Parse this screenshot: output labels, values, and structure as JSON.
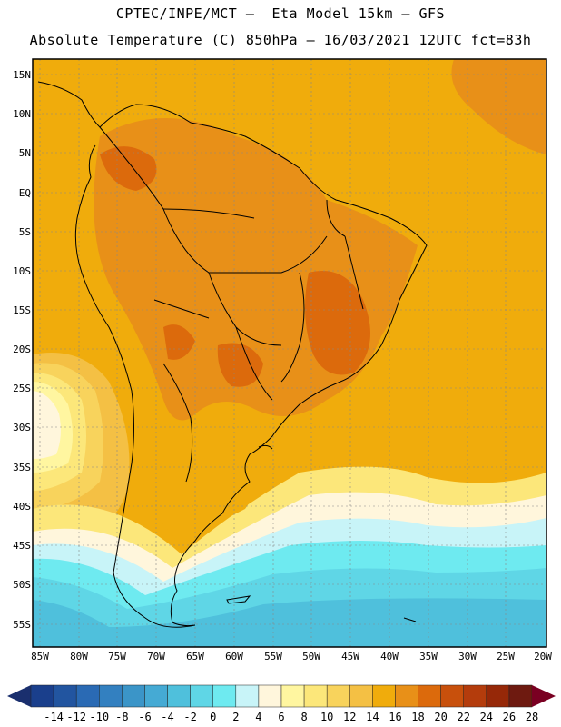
{
  "header": {
    "line1": "CPTEC/INPE/MCT –  Eta Model 15km – GFS",
    "line2": "Absolute Temperature (C) 850hPa – 16/03/2021 12UTC fct=83h"
  },
  "map": {
    "lat_labels": [
      "15N",
      "10N",
      "5N",
      "EQ",
      "5S",
      "10S",
      "15S",
      "20S",
      "25S",
      "30S",
      "35S",
      "40S",
      "45S",
      "50S",
      "55S"
    ],
    "lon_labels": [
      "85W",
      "80W",
      "75W",
      "70W",
      "65W",
      "60W",
      "55W",
      "50W",
      "45W",
      "40W",
      "35W",
      "30W",
      "25W",
      "20W"
    ]
  },
  "colorbar": {
    "labels": [
      "-14",
      "-12",
      "-10",
      "-8",
      "-6",
      "-4",
      "-2",
      "0",
      "2",
      "4",
      "6",
      "8",
      "10",
      "12",
      "14",
      "16",
      "18",
      "20",
      "22",
      "24",
      "26",
      "28"
    ],
    "colors": [
      "#1a3f8c",
      "#2255a0",
      "#2a6ab4",
      "#3380c0",
      "#3b95c8",
      "#45aad4",
      "#4fc0dc",
      "#5fd6e6",
      "#6eeaf0",
      "#c8f4f8",
      "#fff6dc",
      "#fff6a0",
      "#fce77a",
      "#f8d35c",
      "#f4c044",
      "#f0ac0c",
      "#e89018",
      "#dc6a0c",
      "#c8500c",
      "#b43c0c",
      "#962808",
      "#6e1a10"
    ],
    "under_color": "#1a2f6e",
    "over_color": "#7a0022"
  }
}
